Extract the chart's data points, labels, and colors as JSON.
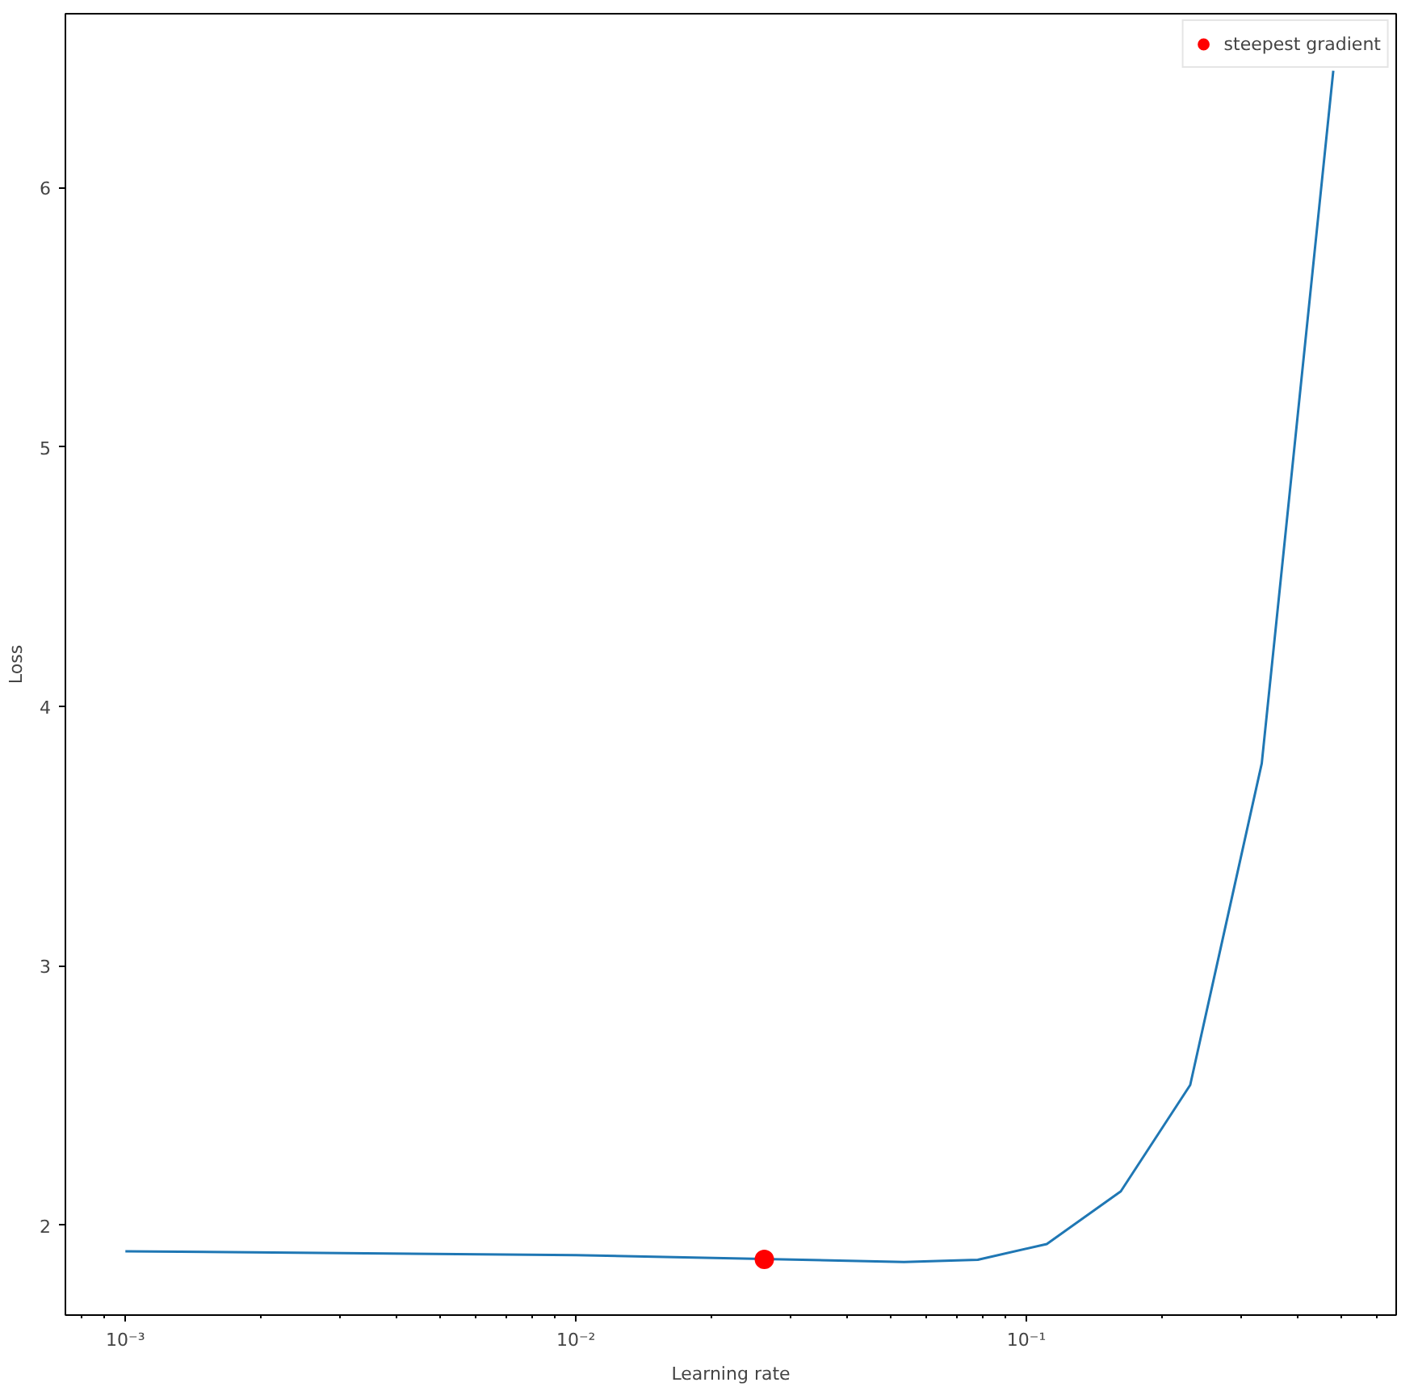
{
  "chart_data": {
    "type": "line",
    "xlabel": "Learning rate",
    "ylabel": "Loss",
    "log": "x",
    "grid": false,
    "legend": "top right",
    "xlim": [
      0.000736,
      0.662
    ],
    "ylim": [
      1.653,
      6.67
    ],
    "xticks": [
      {
        "value": 0.001,
        "label": "10⁻³"
      },
      {
        "value": 0.01,
        "label": "10⁻²"
      },
      {
        "value": 0.1,
        "label": "10⁻¹"
      }
    ],
    "yticks": [
      2,
      3,
      4,
      5,
      6
    ],
    "series": [
      {
        "color": "#1f77b4",
        "x": [
          0.001,
          0.01,
          0.0535,
          0.078,
          0.111,
          0.162,
          0.231,
          0.333,
          0.48
        ],
        "values": [
          1.899,
          1.884,
          1.858,
          1.866,
          1.927,
          2.13,
          2.54,
          3.78,
          6.45
        ]
      },
      {
        "type": "scatter",
        "name": "steepest gradient",
        "color": "#ff0000",
        "marker": "circle",
        "x": [
          0.0262
        ],
        "values": [
          1.868
        ]
      }
    ]
  }
}
